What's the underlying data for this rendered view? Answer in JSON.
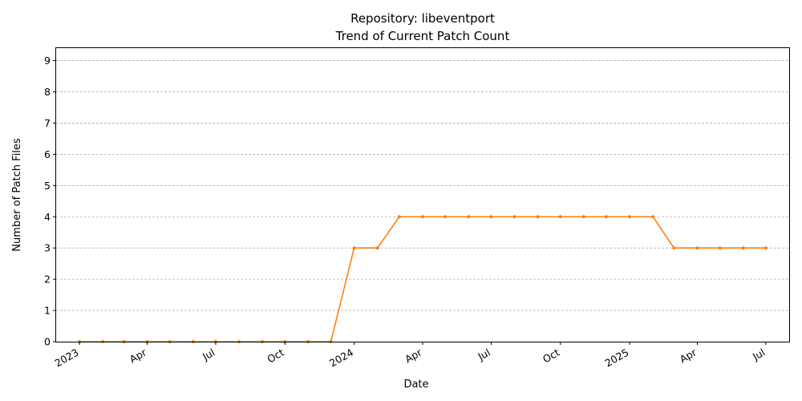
{
  "chart_data": {
    "type": "line",
    "title": "Repository: libeventport",
    "subtitle": "Trend of Current Patch Count",
    "xlabel": "Date",
    "ylabel": "Number of Patch Files",
    "ylim": [
      0,
      9.4
    ],
    "yticks": [
      0,
      1,
      2,
      3,
      4,
      5,
      6,
      7,
      8,
      9
    ],
    "xlim": [
      "2022-12-01",
      "2025-08-01"
    ],
    "xticks": [
      {
        "date": "2023-01-01",
        "label": "2023"
      },
      {
        "date": "2023-04-01",
        "label": "Apr"
      },
      {
        "date": "2023-07-01",
        "label": "Jul"
      },
      {
        "date": "2023-10-01",
        "label": "Oct"
      },
      {
        "date": "2024-01-01",
        "label": "2024"
      },
      {
        "date": "2024-04-01",
        "label": "Apr"
      },
      {
        "date": "2024-07-01",
        "label": "Jul"
      },
      {
        "date": "2024-10-01",
        "label": "Oct"
      },
      {
        "date": "2025-01-01",
        "label": "2025"
      },
      {
        "date": "2025-04-01",
        "label": "Apr"
      },
      {
        "date": "2025-07-01",
        "label": "Jul"
      }
    ],
    "grid": "y",
    "color": "#ff7f0e",
    "x": [
      "2023-01-01",
      "2023-02-01",
      "2023-03-01",
      "2023-04-01",
      "2023-05-01",
      "2023-06-01",
      "2023-07-01",
      "2023-08-01",
      "2023-09-01",
      "2023-10-01",
      "2023-11-01",
      "2023-12-01",
      "2024-01-01",
      "2024-02-01",
      "2024-03-01",
      "2024-04-01",
      "2024-05-01",
      "2024-06-01",
      "2024-07-01",
      "2024-08-01",
      "2024-09-01",
      "2024-10-01",
      "2024-11-01",
      "2024-12-01",
      "2025-01-01",
      "2025-02-01",
      "2025-03-01",
      "2025-04-01",
      "2025-05-01",
      "2025-06-01",
      "2025-07-01"
    ],
    "series": [
      {
        "values": [
          0,
          0,
          0,
          0,
          0,
          0,
          0,
          0,
          0,
          0,
          0,
          0,
          3,
          3,
          4,
          4,
          4,
          4,
          4,
          4,
          4,
          4,
          4,
          4,
          4,
          4,
          3,
          3,
          3,
          3,
          3
        ]
      }
    ]
  }
}
